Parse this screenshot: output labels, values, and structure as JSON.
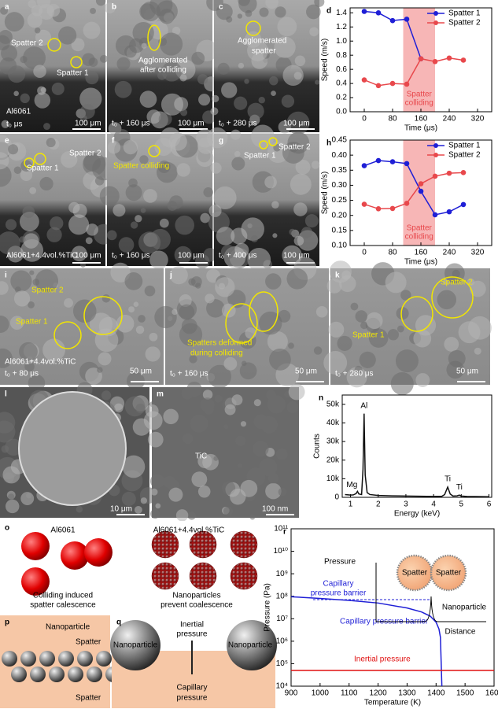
{
  "panels": [
    {
      "label": "a",
      "texts": [
        "Spatter 2",
        "Spatter 1",
        "Al6061",
        "t₀ μs",
        "100 μm"
      ]
    },
    {
      "label": "b",
      "texts": [
        "Agglomerated",
        "after colliding",
        "t₀ + 160 μs",
        "100 μm"
      ]
    },
    {
      "label": "c",
      "texts": [
        "Agglomerated",
        "spatter",
        "t₀ + 280 μs",
        "100 μm"
      ]
    },
    {
      "label": "e",
      "texts": [
        "Spatter 2",
        "Spatter 1",
        "Al6061+4.4vol.%TiC",
        "100 μm"
      ]
    },
    {
      "label": "f",
      "texts": [
        "Spatter colliding",
        "t₀ + 160 μs",
        "100 μm"
      ]
    },
    {
      "label": "g",
      "texts": [
        "Spatter 2",
        "Spatter 1",
        "t₀ + 400 μs",
        "100 μm"
      ]
    },
    {
      "label": "i",
      "texts": [
        "Spatter 2",
        "Spatter 1",
        "Al6061+4.4vol.%TiC",
        "t₀ + 80 μs",
        "50 μm"
      ]
    },
    {
      "label": "j",
      "texts": [
        "Spatters deformed",
        "during colliding",
        "t₀ + 160 μs",
        "50 μm"
      ]
    },
    {
      "label": "k",
      "texts": [
        "Spatter 2",
        "Spatter 1",
        "t₀ + 280 μs",
        "50 μm"
      ]
    },
    {
      "label": "l",
      "texts": [
        "10 μm"
      ]
    },
    {
      "label": "m",
      "texts": [
        "TiC",
        "100 nm"
      ]
    },
    {
      "label": "o",
      "texts": [
        "Al6061",
        "Al6061+4.4vol.%TiC",
        "Colliding induced",
        "spatter calescence",
        "Nanoparticles",
        "prevent coalescence"
      ]
    },
    {
      "label": "p",
      "texts": [
        "Nanoparticle",
        "Spatter",
        "Spatter"
      ]
    },
    {
      "label": "q",
      "texts": [
        "Nanoparticle",
        "Nanoparticle",
        "Inertial",
        "pressure",
        "Capillary",
        "pressure"
      ]
    }
  ],
  "chart_data": [
    {
      "type": "line",
      "label": "d",
      "x_label": "Time (μs)",
      "y_label": "Speed (m/s)",
      "markers": true,
      "legend": "upper right",
      "x": [
        0,
        40,
        80,
        120,
        160,
        200,
        240,
        280
      ],
      "series": [
        {
          "name": "Spatter 1",
          "color": "#1f1fd6",
          "values": [
            1.42,
            1.4,
            1.29,
            1.31,
            0.75,
            null,
            null,
            null
          ]
        },
        {
          "name": "Spatter 2",
          "color": "#e8484c",
          "values": [
            0.45,
            0.37,
            0.4,
            0.39,
            0.75,
            0.71,
            0.76,
            0.73
          ]
        }
      ],
      "xlim": [
        -40,
        360
      ],
      "xticks": [
        0,
        80,
        160,
        240,
        320
      ],
      "ylim": [
        0,
        1.47
      ],
      "yticks": [
        {
          "value": 0,
          "label": "0.0"
        },
        0.2,
        0.4,
        0.6,
        0.8,
        {
          "value": 1,
          "label": "1.0"
        },
        1.2,
        1.4
      ],
      "shade": [
        110,
        200
      ],
      "shade_color": "#f7b6b6",
      "shade_text": [
        "Spatter",
        "colliding"
      ]
    },
    {
      "type": "line",
      "label": "h",
      "x_label": "Time (μs)",
      "y_label": "Speed (m/s)",
      "markers": true,
      "legend": "upper right",
      "x": [
        0,
        40,
        80,
        120,
        160,
        200,
        240,
        280
      ],
      "series": [
        {
          "name": "Spatter 1",
          "color": "#1f1fd6",
          "values": [
            0.365,
            0.382,
            0.378,
            0.372,
            0.28,
            0.202,
            0.212,
            0.236
          ]
        },
        {
          "name": "Spatter 2",
          "color": "#e8484c",
          "values": [
            0.237,
            0.222,
            0.223,
            0.24,
            0.305,
            0.33,
            0.34,
            0.342
          ]
        }
      ],
      "xlim": [
        -40,
        360
      ],
      "xticks": [
        0,
        80,
        160,
        240,
        320
      ],
      "ylim": [
        0.1,
        0.45
      ],
      "yticks": [
        {
          "value": 0.1,
          "label": "0.10"
        },
        0.15,
        {
          "value": 0.2,
          "label": "0.20"
        },
        0.25,
        {
          "value": 0.3,
          "label": "0.30"
        },
        0.35,
        {
          "value": 0.4,
          "label": "0.40"
        },
        0.45
      ],
      "shade": [
        110,
        200
      ],
      "shade_color": "#f7b6b6",
      "shade_text": [
        "Spatter",
        "colliding"
      ]
    },
    {
      "type": "line",
      "label": "n",
      "x_label": "Energy (keV)",
      "y_label": "Counts",
      "markers": false,
      "x": [
        0.8,
        1.0,
        1.1,
        1.2,
        1.25,
        1.3,
        1.4,
        1.45,
        1.49,
        1.53,
        1.6,
        1.7,
        2.0,
        2.5,
        3.0,
        3.5,
        4.0,
        4.3,
        4.4,
        4.51,
        4.6,
        4.7,
        4.85,
        4.93,
        5.0,
        5.2,
        5.5,
        6.0
      ],
      "series": [
        {
          "color": "#111111",
          "values": [
            1500,
            1200,
            1300,
            2000,
            3200,
            1800,
            1500,
            15000,
            45000,
            12000,
            2500,
            1500,
            1000,
            800,
            700,
            600,
            500,
            600,
            1500,
            5500,
            1800,
            700,
            800,
            1200,
            700,
            500,
            400,
            300
          ]
        }
      ],
      "xlim": [
        0.7,
        6.1
      ],
      "xticks": [
        1,
        2,
        3,
        4,
        5,
        6
      ],
      "ylim": [
        0,
        55000
      ],
      "yticks": [
        0,
        {
          "value": 10000,
          "label": "10k"
        },
        {
          "value": 20000,
          "label": "20k"
        },
        {
          "value": 30000,
          "label": "30k"
        },
        {
          "value": 40000,
          "label": "40k"
        },
        {
          "value": 50000,
          "label": "50k"
        }
      ],
      "annotations": [
        "Mg",
        "Al",
        "Ti",
        "Ti"
      ]
    },
    {
      "type": "line",
      "label": "r",
      "x_label": "Temperature (K)",
      "y_label": "Pressure (Pa)",
      "markers": false,
      "yscale": "log",
      "x": [
        900,
        1000,
        1100,
        1200,
        1300,
        1350,
        1380,
        1400,
        1410,
        1415,
        1420,
        1500,
        1600
      ],
      "series": [
        {
          "name": "Capillary pressure barrier",
          "color": "#1f1fd6",
          "values": [
            95000000,
            80000000,
            65000000,
            50000000,
            30000000,
            20000000,
            13000000,
            7000000,
            3500000,
            1500000,
            10000,
            null,
            null
          ]
        },
        {
          "name": "Inertial pressure",
          "color": "#e01010",
          "values": [
            50000,
            50000,
            50000,
            50000,
            50000,
            50000,
            50000,
            50000,
            50000,
            50000,
            50000,
            50000,
            50000
          ]
        }
      ],
      "xlim": [
        900,
        1600
      ],
      "xticks": [
        900,
        1000,
        1100,
        1200,
        1300,
        1400,
        1500,
        1600
      ],
      "ylim": [
        10000,
        100000000000
      ],
      "yticks": [
        {
          "value": 10000,
          "label": "10⁴"
        },
        {
          "value": 100000,
          "label": "10⁵"
        },
        {
          "value": 1000000,
          "label": "10⁶"
        },
        {
          "value": 10000000,
          "label": "10⁷"
        },
        {
          "value": 100000000,
          "label": "10⁸"
        },
        {
          "value": 1000000000,
          "label": "10⁹"
        },
        {
          "value": 10000000000,
          "label": "10¹⁰"
        },
        {
          "value": 100000000000,
          "label": "10¹¹"
        }
      ],
      "inset": [
        "Pressure",
        "Spatter",
        "Spatter",
        "Capillary",
        "pressure barrier",
        "Nanoparticle",
        "Distance"
      ]
    }
  ]
}
